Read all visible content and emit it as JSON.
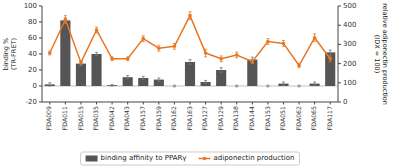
{
  "chart_data": {
    "type": "bar",
    "categories": [
      "FDA009",
      "FDA011",
      "FDA015",
      "FDA035",
      "FDA042",
      "FDA043",
      "FDA157",
      "FDA159",
      "FDA162",
      "FDA163",
      "FDA127",
      "FDA129",
      "FDA138",
      "FDA144",
      "FDA153",
      "FDA051",
      "FDA062",
      "FDA065",
      "FDA117"
    ],
    "series": [
      {
        "name": "binding affinity to PPARγ",
        "type": "bar",
        "color": "#555555",
        "values": [
          2,
          82,
          28,
          40,
          1,
          11,
          10,
          8,
          0,
          30,
          5,
          20,
          0,
          33,
          0,
          3,
          0,
          3,
          42
        ],
        "errors": [
          2,
          3,
          3,
          2,
          1,
          2,
          2,
          2,
          1,
          3,
          2,
          3,
          1,
          3,
          1,
          2,
          1,
          2,
          3
        ]
      },
      {
        "name": "adiponectin production",
        "type": "line",
        "color": "#E87722",
        "marker": "circle",
        "axis": "y2",
        "values": [
          255,
          430,
          205,
          375,
          225,
          225,
          330,
          280,
          290,
          450,
          255,
          225,
          245,
          210,
          315,
          305,
          190,
          335,
          225
        ],
        "errors": [
          10,
          20,
          10,
          15,
          10,
          10,
          15,
          15,
          15,
          20,
          20,
          15,
          15,
          10,
          15,
          15,
          10,
          20,
          15
        ]
      }
    ],
    "ylabel": "binding %\n(TR-FRET)",
    "y2label": "relative adiponectin production\n(IDX = 100)",
    "ylim": [
      -20,
      100
    ],
    "yticks": [
      -20,
      0,
      20,
      40,
      60,
      80,
      100
    ],
    "y2lim": [
      0,
      500
    ],
    "y2ticks": [
      0,
      100,
      200,
      300,
      400,
      500
    ],
    "legend": "bottom"
  }
}
